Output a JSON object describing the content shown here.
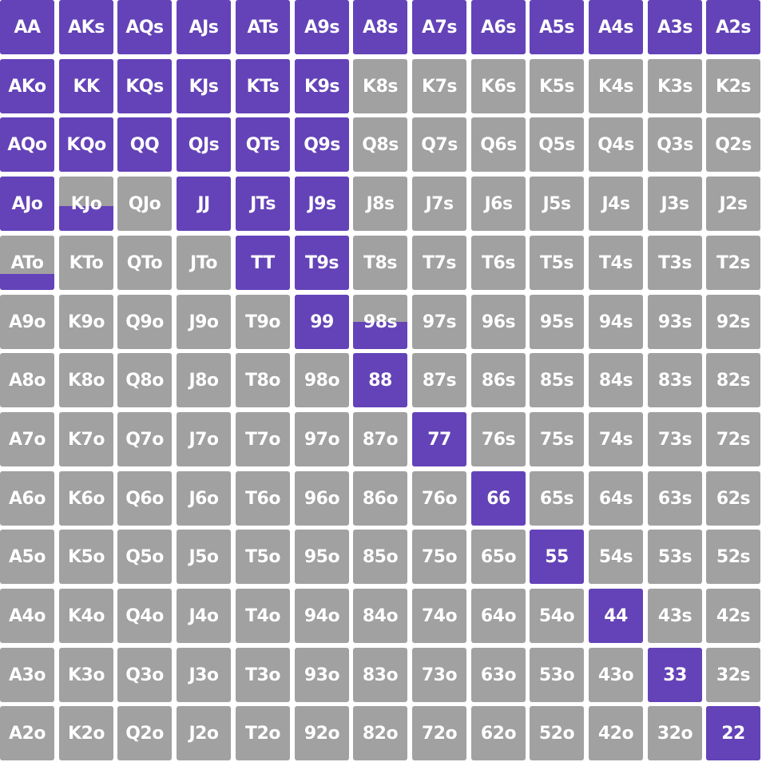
{
  "colors": {
    "selected": "#6443b9",
    "unselected": "#a1a1a1",
    "text": "#ffffff"
  },
  "rows": [
    [
      "AA",
      "AKs",
      "AQs",
      "AJs",
      "ATs",
      "A9s",
      "A8s",
      "A7s",
      "A6s",
      "A5s",
      "A4s",
      "A3s",
      "A2s"
    ],
    [
      "AKo",
      "KK",
      "KQs",
      "KJs",
      "KTs",
      "K9s",
      "K8s",
      "K7s",
      "K6s",
      "K5s",
      "K4s",
      "K3s",
      "K2s"
    ],
    [
      "AQo",
      "KQo",
      "QQ",
      "QJs",
      "QTs",
      "Q9s",
      "Q8s",
      "Q7s",
      "Q6s",
      "Q5s",
      "Q4s",
      "Q3s",
      "Q2s"
    ],
    [
      "AJo",
      "KJo",
      "QJo",
      "JJ",
      "JTs",
      "J9s",
      "J8s",
      "J7s",
      "J6s",
      "J5s",
      "J4s",
      "J3s",
      "J2s"
    ],
    [
      "ATo",
      "KTo",
      "QTo",
      "JTo",
      "TT",
      "T9s",
      "T8s",
      "T7s",
      "T6s",
      "T5s",
      "T4s",
      "T3s",
      "T2s"
    ],
    [
      "A9o",
      "K9o",
      "Q9o",
      "J9o",
      "T9o",
      "99",
      "98s",
      "97s",
      "96s",
      "95s",
      "94s",
      "93s",
      "92s"
    ],
    [
      "A8o",
      "K8o",
      "Q8o",
      "J8o",
      "T8o",
      "98o",
      "88",
      "87s",
      "86s",
      "85s",
      "84s",
      "83s",
      "82s"
    ],
    [
      "A7o",
      "K7o",
      "Q7o",
      "J7o",
      "T7o",
      "97o",
      "87o",
      "77",
      "76s",
      "75s",
      "74s",
      "73s",
      "72s"
    ],
    [
      "A6o",
      "K6o",
      "Q6o",
      "J6o",
      "T6o",
      "96o",
      "86o",
      "76o",
      "66",
      "65s",
      "64s",
      "63s",
      "62s"
    ],
    [
      "A5o",
      "K5o",
      "Q5o",
      "J5o",
      "T5o",
      "95o",
      "85o",
      "75o",
      "65o",
      "55",
      "54s",
      "53s",
      "52s"
    ],
    [
      "A4o",
      "K4o",
      "Q4o",
      "J4o",
      "T4o",
      "94o",
      "84o",
      "74o",
      "64o",
      "54o",
      "44",
      "43s",
      "42s"
    ],
    [
      "A3o",
      "K3o",
      "Q3o",
      "J3o",
      "T3o",
      "93o",
      "83o",
      "73o",
      "63o",
      "53o",
      "43o",
      "33",
      "32s"
    ],
    [
      "A2o",
      "K2o",
      "Q2o",
      "J2o",
      "T2o",
      "92o",
      "82o",
      "72o",
      "62o",
      "52o",
      "42o",
      "32o",
      "22"
    ]
  ],
  "frequencies": [
    [
      1,
      1,
      1,
      1,
      1,
      1,
      1,
      1,
      1,
      1,
      1,
      1,
      1
    ],
    [
      1,
      1,
      1,
      1,
      1,
      1,
      0,
      0,
      0,
      0,
      0,
      0,
      0
    ],
    [
      1,
      1,
      1,
      1,
      1,
      1,
      0,
      0,
      0,
      0,
      0,
      0,
      0
    ],
    [
      1,
      0.45,
      0,
      1,
      1,
      1,
      0,
      0,
      0,
      0,
      0,
      0,
      0
    ],
    [
      0.3,
      0,
      0,
      0,
      1,
      1,
      0,
      0,
      0,
      0,
      0,
      0,
      0
    ],
    [
      0,
      0,
      0,
      0,
      0,
      1,
      0.5,
      0,
      0,
      0,
      0,
      0,
      0
    ],
    [
      0,
      0,
      0,
      0,
      0,
      0,
      1,
      0,
      0,
      0,
      0,
      0,
      0
    ],
    [
      0,
      0,
      0,
      0,
      0,
      0,
      0,
      1,
      0,
      0,
      0,
      0,
      0
    ],
    [
      0,
      0,
      0,
      0,
      0,
      0,
      0,
      0,
      1,
      0,
      0,
      0,
      0
    ],
    [
      0,
      0,
      0,
      0,
      0,
      0,
      0,
      0,
      0,
      1,
      0,
      0,
      0
    ],
    [
      0,
      0,
      0,
      0,
      0,
      0,
      0,
      0,
      0,
      0,
      1,
      0,
      0
    ],
    [
      0,
      0,
      0,
      0,
      0,
      0,
      0,
      0,
      0,
      0,
      0,
      1,
      0
    ],
    [
      0,
      0,
      0,
      0,
      0,
      0,
      0,
      0,
      0,
      0,
      0,
      0,
      1
    ]
  ]
}
